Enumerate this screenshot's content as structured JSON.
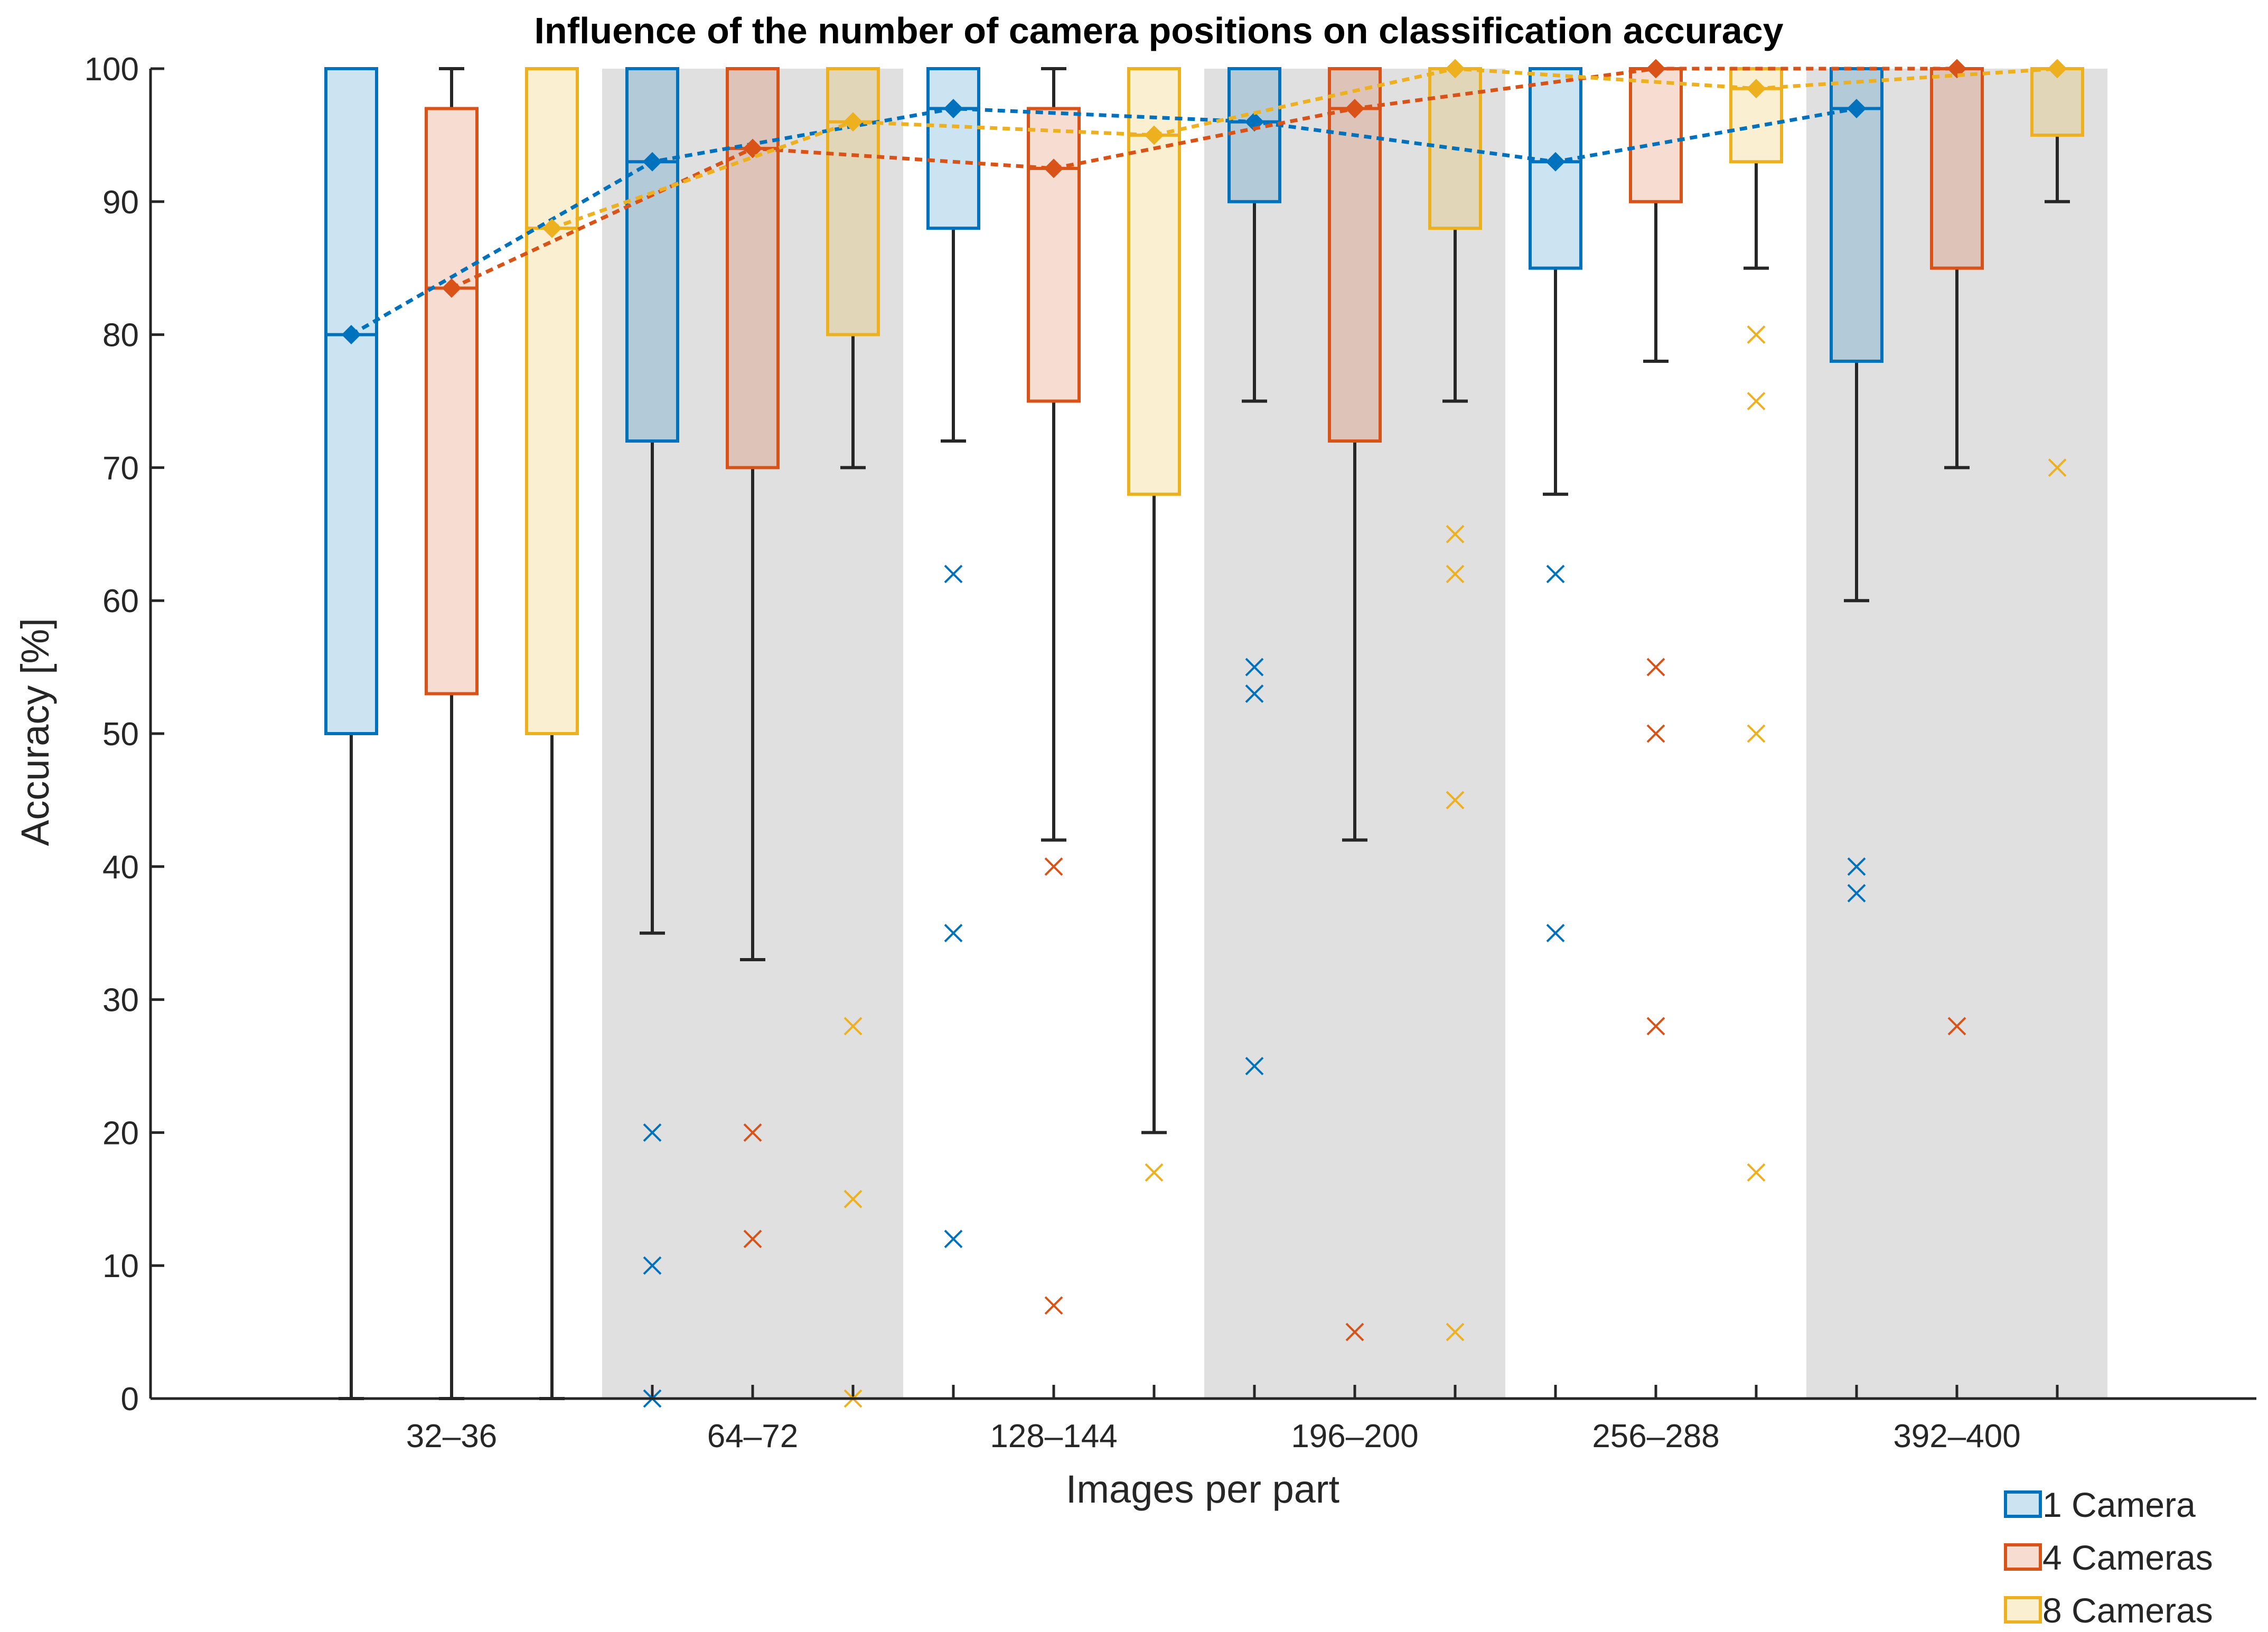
{
  "chart_data": {
    "type": "box",
    "title": "Influence of the number of camera positions on classification accuracy",
    "xlabel": "Images per part",
    "ylabel": "Accuracy [%]",
    "ylim": [
      0,
      100
    ],
    "yticks": [
      0,
      10,
      20,
      30,
      40,
      50,
      60,
      70,
      80,
      90,
      100
    ],
    "categories": [
      "32–36",
      "64–72",
      "128–144",
      "196–200",
      "256–288",
      "392–400"
    ],
    "shaded_groups": [
      1,
      3,
      5
    ],
    "colors": {
      "1 Camera": "#0072BD",
      "4 Cameras": "#D95319",
      "8 Cameras": "#EDB120",
      "whisker": "#262626",
      "shade": "#e0e0e0",
      "axis": "#262626"
    },
    "legend": {
      "position": "bottom-right",
      "entries": [
        "1 Camera",
        "4 Cameras",
        "8 Cameras"
      ]
    },
    "series": [
      {
        "name": "1 Camera",
        "boxes": [
          {
            "q1": 50,
            "median": 80,
            "q3": 100,
            "whisker_low": 0,
            "whisker_high": 100,
            "outliers": []
          },
          {
            "q1": 72,
            "median": 93,
            "q3": 100,
            "whisker_low": 35,
            "whisker_high": 100,
            "outliers": [
              20,
              10,
              0
            ]
          },
          {
            "q1": 88,
            "median": 97,
            "q3": 100,
            "whisker_low": 72,
            "whisker_high": 100,
            "outliers": [
              62,
              35,
              12
            ]
          },
          {
            "q1": 90,
            "median": 96,
            "q3": 100,
            "whisker_low": 75,
            "whisker_high": 100,
            "outliers": [
              55,
              53,
              25
            ]
          },
          {
            "q1": 85,
            "median": 93,
            "q3": 100,
            "whisker_low": 68,
            "whisker_high": 100,
            "outliers": [
              62,
              35
            ]
          },
          {
            "q1": 78,
            "median": 97,
            "q3": 100,
            "whisker_low": 60,
            "whisker_high": 100,
            "outliers": [
              40,
              38
            ]
          }
        ]
      },
      {
        "name": "4 Cameras",
        "boxes": [
          {
            "q1": 53,
            "median": 83.5,
            "q3": 97,
            "whisker_low": 0,
            "whisker_high": 100,
            "outliers": []
          },
          {
            "q1": 70,
            "median": 94,
            "q3": 100,
            "whisker_low": 33,
            "whisker_high": 100,
            "outliers": [
              20,
              12
            ]
          },
          {
            "q1": 75,
            "median": 92.5,
            "q3": 97,
            "whisker_low": 42,
            "whisker_high": 100,
            "outliers": [
              40,
              7
            ]
          },
          {
            "q1": 72,
            "median": 97,
            "q3": 100,
            "whisker_low": 42,
            "whisker_high": 100,
            "outliers": [
              5
            ]
          },
          {
            "q1": 90,
            "median": 100,
            "q3": 100,
            "whisker_low": 78,
            "whisker_high": 100,
            "outliers": [
              55,
              50,
              28
            ]
          },
          {
            "q1": 85,
            "median": 100,
            "q3": 100,
            "whisker_low": 70,
            "whisker_high": 100,
            "outliers": [
              28
            ]
          }
        ]
      },
      {
        "name": "8 Cameras",
        "boxes": [
          {
            "q1": 50,
            "median": 88,
            "q3": 100,
            "whisker_low": 0,
            "whisker_high": 100,
            "outliers": []
          },
          {
            "q1": 80,
            "median": 96,
            "q3": 100,
            "whisker_low": 70,
            "whisker_high": 100,
            "outliers": [
              28,
              15,
              0
            ]
          },
          {
            "q1": 68,
            "median": 95,
            "q3": 100,
            "whisker_low": 20,
            "whisker_high": 100,
            "outliers": [
              17
            ]
          },
          {
            "q1": 88,
            "median": 100,
            "q3": 100,
            "whisker_low": 75,
            "whisker_high": 100,
            "outliers": [
              65,
              62,
              45,
              5
            ]
          },
          {
            "q1": 93,
            "median": 98.5,
            "q3": 100,
            "whisker_low": 85,
            "whisker_high": 100,
            "outliers": [
              80,
              75,
              50,
              17
            ]
          },
          {
            "q1": 95,
            "median": 100,
            "q3": 100,
            "whisker_low": 90,
            "whisker_high": 100,
            "outliers": [
              70
            ]
          }
        ]
      }
    ]
  }
}
